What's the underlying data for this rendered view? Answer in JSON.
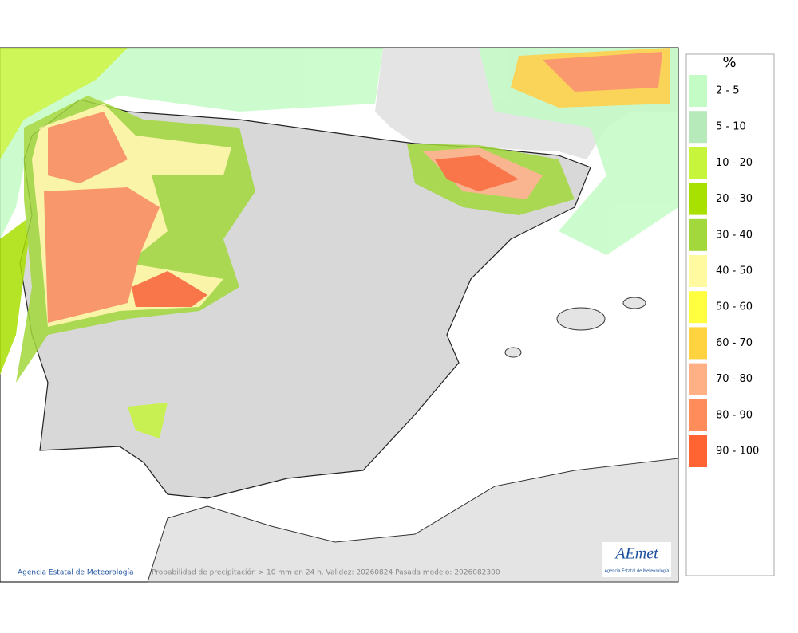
{
  "map": {
    "credit": "Agencia Estatal de Meteorología",
    "caption": "Probabilidad de precipitación > 10 mm en 24 h. Validez: 20260824 Pasada modelo: 2026082300"
  },
  "logo": {
    "name": "AEmet",
    "subtitle": "Agencia Estatal de Meteorología"
  },
  "legend": {
    "title": "%",
    "items": [
      {
        "label": "2 - 5",
        "color": "#c4fcc6"
      },
      {
        "label": "5 - 10",
        "color": "#b6eabb"
      },
      {
        "label": "10 - 20",
        "color": "#c6f53c"
      },
      {
        "label": "20 - 30",
        "color": "#a8e000"
      },
      {
        "label": "30 - 40",
        "color": "#a2d83c"
      },
      {
        "label": "40 - 50",
        "color": "#fffaa0"
      },
      {
        "label": "50 - 60",
        "color": "#ffff40"
      },
      {
        "label": "60 - 70",
        "color": "#ffd240"
      },
      {
        "label": "70 - 80",
        "color": "#ffb084"
      },
      {
        "label": "80 - 90",
        "color": "#ff8c5a"
      },
      {
        "label": "90 - 100",
        "color": "#ff6432"
      }
    ]
  }
}
